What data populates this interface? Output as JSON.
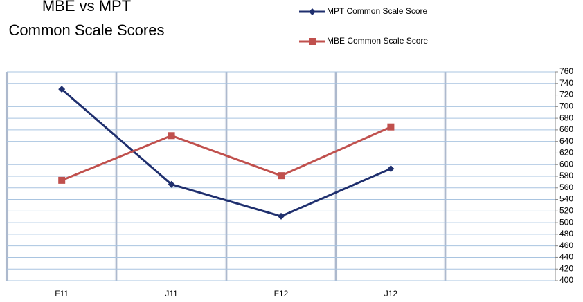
{
  "chart_data": {
    "type": "line",
    "title": [
      "MBE vs MPT",
      "Common Scale Scores"
    ],
    "categories": [
      "F11",
      "J11",
      "F12",
      "J12",
      null
    ],
    "series": [
      {
        "name": "MPT Common Scale Score",
        "color": "#1f2f6e",
        "marker": "diamond",
        "values": [
          730,
          566,
          511,
          593,
          null
        ]
      },
      {
        "name": "MBE Common Scale Score",
        "color": "#c0504d",
        "marker": "square",
        "values": [
          573,
          650,
          581,
          665,
          null
        ]
      }
    ],
    "ylim": [
      400,
      760
    ],
    "yticks": [
      400,
      420,
      440,
      460,
      480,
      500,
      520,
      540,
      560,
      580,
      600,
      620,
      640,
      660,
      680,
      700,
      720,
      740,
      760
    ],
    "grid": true
  }
}
